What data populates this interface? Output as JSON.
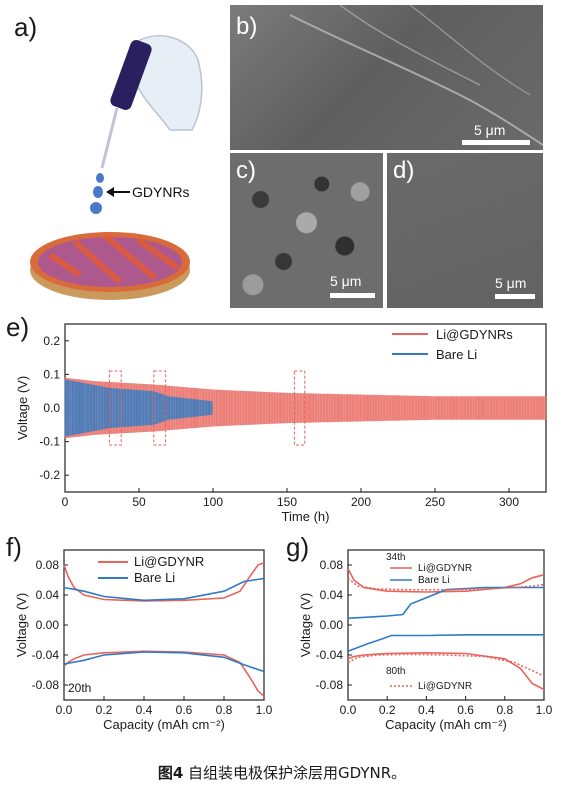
{
  "panel_labels": {
    "a": "a)",
    "b": "b)",
    "c": "c)",
    "d": "d)",
    "e": "e)",
    "f": "f)",
    "g": "g)"
  },
  "panel_a": {
    "pointer_label": "GDYNRs"
  },
  "scale_bars": {
    "b": "5 μm",
    "c": "5 μm",
    "d": "5 μm"
  },
  "caption": {
    "figure_number": "图4",
    "text": " 自组装电极保护涂层用GDYNR。"
  },
  "colors": {
    "li_gdynr": "#e8635a",
    "bare_li": "#2f7bc4",
    "sem_gray": "#6f6f6f"
  },
  "chart_data": [
    {
      "id": "e",
      "type": "line",
      "xlabel": "Time (h)",
      "ylabel": "Voltage (V)",
      "xlim": [
        0,
        325
      ],
      "ylim": [
        -0.25,
        0.25
      ],
      "xticks": [
        "0",
        "50",
        "100",
        "150",
        "200",
        "250",
        "300"
      ],
      "yticks": [
        "0.2",
        "0.1",
        "0.0",
        "-0.1",
        "-0.2"
      ],
      "legend_position": "top-right",
      "series": [
        {
          "name": "Li@GDYNRs",
          "x_range": [
            0,
            325
          ],
          "amplitude": [
            [
              0,
              0.09
            ],
            [
              20,
              0.08
            ],
            [
              60,
              0.07
            ],
            [
              100,
              0.055
            ],
            [
              150,
              0.045
            ],
            [
              200,
              0.04
            ],
            [
              250,
              0.035
            ],
            [
              325,
              0.035
            ]
          ]
        },
        {
          "name": "Bare Li",
          "x_range": [
            0,
            100
          ],
          "amplitude": [
            [
              0,
              0.085
            ],
            [
              30,
              0.06
            ],
            [
              60,
              0.05
            ],
            [
              70,
              0.035
            ],
            [
              100,
              0.02
            ]
          ]
        }
      ],
      "highlight_boxes": [
        [
          30,
          38
        ],
        [
          60,
          68
        ],
        [
          155,
          162
        ]
      ]
    },
    {
      "id": "f",
      "type": "line",
      "xlabel": "Capacity (mAh cm⁻²)",
      "ylabel": "Voltage (V)",
      "xlim": [
        0,
        1.0
      ],
      "ylim": [
        -0.1,
        0.1
      ],
      "xticks": [
        "0.0",
        "0.2",
        "0.4",
        "0.6",
        "0.8",
        "1.0"
      ],
      "yticks": [
        "0.08",
        "0.04",
        "0.00",
        "-0.04",
        "-0.08"
      ],
      "annotation": "20th",
      "legend_position": "top-center",
      "series": [
        {
          "name": "Li@GDYNR",
          "branches": [
            {
              "x": [
                0,
                0.02,
                0.05,
                0.1,
                0.2,
                0.4,
                0.6,
                0.8,
                0.88,
                0.93,
                0.97,
                1.0
              ],
              "y": [
                0.08,
                0.065,
                0.05,
                0.04,
                0.034,
                0.032,
                0.033,
                0.036,
                0.045,
                0.065,
                0.08,
                0.083
              ]
            },
            {
              "x": [
                0,
                0.02,
                0.05,
                0.1,
                0.2,
                0.4,
                0.6,
                0.8,
                0.88,
                0.93,
                0.97,
                1.0
              ],
              "y": [
                -0.055,
                -0.05,
                -0.045,
                -0.04,
                -0.037,
                -0.035,
                -0.036,
                -0.04,
                -0.05,
                -0.07,
                -0.088,
                -0.095
              ]
            }
          ]
        },
        {
          "name": "Bare Li",
          "branches": [
            {
              "x": [
                0,
                0.1,
                0.2,
                0.4,
                0.6,
                0.8,
                0.9,
                1.0
              ],
              "y": [
                0.05,
                0.045,
                0.038,
                0.033,
                0.035,
                0.045,
                0.058,
                0.062
              ]
            },
            {
              "x": [
                0,
                0.1,
                0.2,
                0.4,
                0.6,
                0.8,
                0.9,
                1.0
              ],
              "y": [
                -0.052,
                -0.047,
                -0.04,
                -0.036,
                -0.037,
                -0.043,
                -0.053,
                -0.062
              ]
            }
          ]
        }
      ]
    },
    {
      "id": "g",
      "type": "line",
      "xlabel": "Capacity (mAh cm⁻²)",
      "ylabel": "Voltage (V)",
      "xlim": [
        0,
        1.0
      ],
      "ylim": [
        -0.1,
        0.1
      ],
      "xticks": [
        "0.0",
        "0.2",
        "0.4",
        "0.6",
        "0.8",
        "1.0"
      ],
      "yticks": [
        "0.08",
        "0.04",
        "0.00",
        "-0.04",
        "-0.08"
      ],
      "annotations": [
        "34th",
        "80th"
      ],
      "series": [
        {
          "name": "Li@GDYNR",
          "group": "34th",
          "style": "solid",
          "branches": [
            {
              "x": [
                0,
                0.03,
                0.08,
                0.2,
                0.4,
                0.6,
                0.8,
                0.88,
                0.94,
                1.0
              ],
              "y": [
                0.075,
                0.06,
                0.05,
                0.045,
                0.044,
                0.045,
                0.05,
                0.055,
                0.063,
                0.067
              ]
            },
            {
              "x": [
                0,
                0.03,
                0.08,
                0.2,
                0.4,
                0.6,
                0.8,
                0.88,
                0.94,
                1.0
              ],
              "y": [
                -0.045,
                -0.042,
                -0.04,
                -0.038,
                -0.037,
                -0.038,
                -0.045,
                -0.058,
                -0.078,
                -0.086
              ]
            }
          ]
        },
        {
          "name": "Bare Li",
          "group": "34th",
          "style": "solid",
          "branches": [
            {
              "x": [
                0,
                0.2,
                0.28,
                0.32,
                0.5,
                0.7,
                0.9,
                1.0
              ],
              "y": [
                0.009,
                0.012,
                0.014,
                0.028,
                0.047,
                0.05,
                0.05,
                0.05
              ]
            },
            {
              "x": [
                0,
                0.1,
                0.18,
                0.22,
                0.4,
                0.6,
                0.8,
                1.0
              ],
              "y": [
                -0.035,
                -0.025,
                -0.018,
                -0.014,
                -0.014,
                -0.013,
                -0.013,
                -0.013
              ]
            }
          ]
        },
        {
          "name": "Li@GDYNR",
          "group": "80th",
          "style": "dotted",
          "branches": [
            {
              "x": [
                0,
                0.05,
                0.15,
                0.3,
                0.5,
                0.7,
                0.85,
                0.95,
                1.0
              ],
              "y": [
                0.062,
                0.052,
                0.048,
                0.047,
                0.047,
                0.048,
                0.05,
                0.052,
                0.054
              ]
            },
            {
              "x": [
                0,
                0.05,
                0.15,
                0.3,
                0.5,
                0.7,
                0.85,
                0.95,
                1.0
              ],
              "y": [
                -0.05,
                -0.043,
                -0.04,
                -0.039,
                -0.04,
                -0.042,
                -0.05,
                -0.062,
                -0.068
              ]
            }
          ]
        }
      ]
    }
  ]
}
